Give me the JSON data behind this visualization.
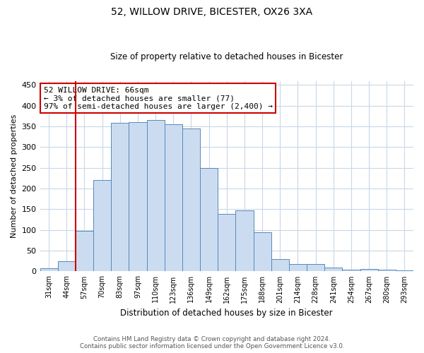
{
  "title1": "52, WILLOW DRIVE, BICESTER, OX26 3XA",
  "title2": "Size of property relative to detached houses in Bicester",
  "xlabel": "Distribution of detached houses by size in Bicester",
  "ylabel": "Number of detached properties",
  "categories": [
    "31sqm",
    "44sqm",
    "57sqm",
    "70sqm",
    "83sqm",
    "97sqm",
    "110sqm",
    "123sqm",
    "136sqm",
    "149sqm",
    "162sqm",
    "175sqm",
    "188sqm",
    "201sqm",
    "214sqm",
    "228sqm",
    "241sqm",
    "254sqm",
    "267sqm",
    "280sqm",
    "293sqm"
  ],
  "values": [
    8,
    25,
    98,
    221,
    358,
    360,
    365,
    355,
    345,
    250,
    138,
    148,
    95,
    30,
    18,
    18,
    10,
    4,
    5,
    4,
    3
  ],
  "bar_color": "#ccdcf0",
  "bar_edge_color": "#5588bb",
  "vline_color": "#cc0000",
  "annotation_text": "52 WILLOW DRIVE: 66sqm\n← 3% of detached houses are smaller (77)\n97% of semi-detached houses are larger (2,400) →",
  "annotation_box_color": "#ffffff",
  "annotation_box_edge": "#cc0000",
  "ylim": [
    0,
    460
  ],
  "yticks": [
    0,
    50,
    100,
    150,
    200,
    250,
    300,
    350,
    400,
    450
  ],
  "footer1": "Contains HM Land Registry data © Crown copyright and database right 2024.",
  "footer2": "Contains public sector information licensed under the Open Government Licence v3.0.",
  "background_color": "#ffffff",
  "grid_color": "#c8d8e8"
}
